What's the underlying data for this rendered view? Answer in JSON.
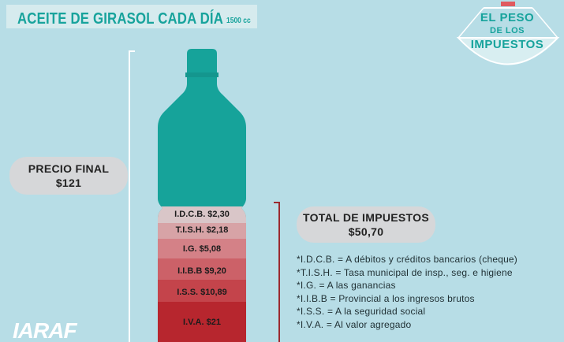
{
  "header": {
    "title": "ACEITE DE GIRASOL CADA DÍA",
    "volume": "1500 cc"
  },
  "badge": {
    "lines": [
      "EL PESO",
      "DE LOS",
      "IMPUESTOS"
    ]
  },
  "price_pill": {
    "label": "PRECIO FINAL",
    "value": "$121"
  },
  "tax_total_pill": {
    "label": "TOTAL DE IMPUESTOS",
    "value": "$50,70"
  },
  "taxes": [
    {
      "label": "I.D.C.B. $2,30",
      "color": "#d9c6c8"
    },
    {
      "label": "T.I.S.H. $2,18",
      "color": "#d7a3a6"
    },
    {
      "label": "I.G. $5,08",
      "color": "#d48187"
    },
    {
      "label": "I.I.B.B $9,20",
      "color": "#cc6168"
    },
    {
      "label": "I.S.S. $10,89",
      "color": "#c4444b"
    },
    {
      "label": "I.V.A. $21",
      "color": "#b7262e"
    }
  ],
  "glossary": [
    "*I.D.C.B. = A débitos y créditos bancarios (cheque)",
    "*T.I.S.H. = Tasa municipal de insp., seg. e higiene",
    "*I.G. = A las ganancias",
    "*I.I.B.B = Provincial a los ingresos brutos",
    "*I.S.S. = A la seguridad social",
    "*I.V.A. = Al valor agregado"
  ],
  "logo": {
    "text": "IARAF"
  },
  "colors": {
    "bottle": "#16a39a",
    "background": "#b7dde6",
    "accent": "#17a39c",
    "bracket": "#9b2a2f"
  }
}
